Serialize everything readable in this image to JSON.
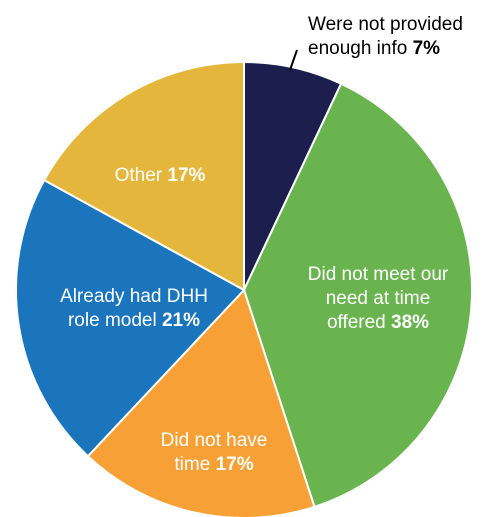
{
  "chart_data": {
    "type": "pie",
    "start_angle_deg": 0,
    "direction": "clockwise",
    "slices": [
      {
        "label_lines": [
          "Were not provided",
          "enough info"
        ],
        "value": 7,
        "value_label": "7%",
        "color": "#1c1f4e",
        "label_color": "#000000",
        "label_position": "outside-top-right"
      },
      {
        "label_lines": [
          "Did not meet our",
          "need at time",
          "offered"
        ],
        "value": 38,
        "value_label": "38%",
        "color": "#6ab450",
        "label_color": "#ffffff",
        "label_position": "inside"
      },
      {
        "label_lines": [
          "Did not have",
          "time"
        ],
        "value": 17,
        "value_label": "17%",
        "color": "#f7a035",
        "label_color": "#ffffff",
        "label_position": "inside"
      },
      {
        "label_lines": [
          "Already had DHH",
          "role model"
        ],
        "value": 21,
        "value_label": "21%",
        "color": "#1a75bc",
        "label_color": "#ffffff",
        "label_position": "inside"
      },
      {
        "label_lines": [
          "Other"
        ],
        "value": 17,
        "value_label": "17%",
        "color": "#e4b73c",
        "label_color": "#ffffff",
        "label_position": "inside"
      }
    ]
  }
}
